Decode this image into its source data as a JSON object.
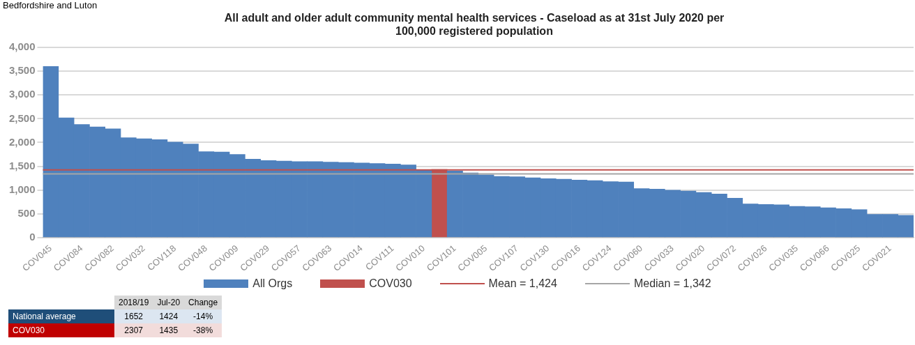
{
  "chart_data": {
    "type": "bar",
    "title": "All adult and older adult community mental health services - Caseload as at 31st July 2020 per 100,000 registered population",
    "categories": [
      "COV045",
      null,
      "COV084",
      null,
      "COV082",
      null,
      "COV032",
      null,
      "COV118",
      null,
      "COV048",
      null,
      "COV009",
      null,
      "COV029",
      null,
      "COV057",
      null,
      "COV063",
      null,
      "COV014",
      null,
      "COV111",
      null,
      "COV010",
      null,
      "COV101",
      null,
      "COV005",
      null,
      "COV107",
      null,
      "COV130",
      null,
      "COV016",
      null,
      "COV124",
      null,
      "COV060",
      null,
      "COV033",
      null,
      "COV020",
      null,
      "COV072",
      null,
      "COV026",
      null,
      "COV035",
      null,
      "COV066",
      null,
      "COV025",
      null,
      "COV021",
      null
    ],
    "series": [
      {
        "name": "All Orgs",
        "color": "#4f81bd",
        "values": [
          3600,
          2520,
          2380,
          2330,
          2290,
          2100,
          2080,
          2060,
          2010,
          1970,
          1810,
          1800,
          1750,
          1650,
          1620,
          1610,
          1600,
          1600,
          1590,
          1580,
          1570,
          1560,
          1550,
          1530,
          1430,
          null,
          1400,
          1360,
          1320,
          1290,
          1280,
          1260,
          1240,
          1230,
          1210,
          1200,
          1180,
          1170,
          1030,
          1020,
          1000,
          980,
          950,
          920,
          830,
          710,
          700,
          690,
          660,
          650,
          630,
          610,
          590,
          490,
          490,
          470
        ]
      },
      {
        "name": "COV030",
        "color": "#c0504d",
        "values": [
          null,
          null,
          null,
          null,
          null,
          null,
          null,
          null,
          null,
          null,
          null,
          null,
          null,
          null,
          null,
          null,
          null,
          null,
          null,
          null,
          null,
          null,
          null,
          null,
          null,
          1435,
          null,
          null,
          null,
          null,
          null,
          null,
          null,
          null,
          null,
          null,
          null,
          null,
          null,
          null,
          null,
          null,
          null,
          null,
          null,
          null,
          null,
          null,
          null,
          null,
          null,
          null,
          null,
          null,
          null,
          null
        ]
      }
    ],
    "ylim": [
      0,
      4000
    ],
    "yticks": [
      0,
      500,
      {
        "value": 1000,
        "label": "1,000"
      },
      {
        "value": 1500,
        "label": "1,500"
      },
      {
        "value": 2000,
        "label": "2,000"
      },
      {
        "value": 2500,
        "label": "2,500"
      },
      {
        "value": 3000,
        "label": "3,000"
      },
      {
        "value": 3500,
        "label": "3,500"
      },
      {
        "value": 4000,
        "label": "4,000"
      }
    ],
    "grid": "y",
    "legend": "bottom",
    "ref_lines": [
      {
        "axis": "y",
        "value": 1424,
        "label": "Mean = 1,424",
        "color": "#c0504d"
      },
      {
        "axis": "y",
        "value": 1342,
        "label": "Median = 1,342",
        "color": "#a6a6a6"
      }
    ],
    "annotations": [
      "Bedfordshire and Luton",
      "2018/19",
      "Jul-20",
      "Change",
      "National average",
      "1652",
      "1424",
      "-14%",
      "COV030",
      "2307",
      "1435",
      "-38%"
    ]
  }
}
